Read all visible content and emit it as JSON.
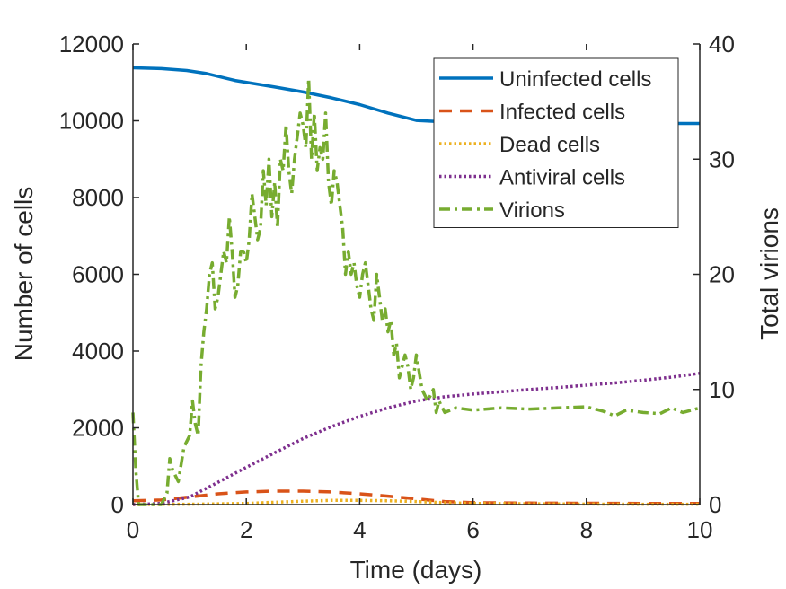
{
  "chart_data": {
    "type": "line",
    "title": "",
    "xlabel": "Time (days)",
    "ylabel_left": "Number of cells",
    "ylabel_right": "Total virions",
    "xlim": [
      0,
      10
    ],
    "ylim_left": [
      0,
      12000
    ],
    "ylim_right": [
      0,
      40
    ],
    "x_ticks": [
      0,
      2,
      4,
      6,
      8,
      10
    ],
    "y_ticks_left": [
      0,
      2000,
      4000,
      6000,
      8000,
      10000,
      12000
    ],
    "y_ticks_right": [
      0,
      10,
      20,
      30,
      40
    ],
    "grid": false,
    "legend_position": "top-right",
    "series": [
      {
        "name": "Uninfected cells",
        "axis": "left",
        "color": "#0072BD",
        "style": "solid",
        "x": [
          0,
          0.5,
          0.95,
          1.3,
          1.8,
          2.5,
          3.0,
          3.5,
          4.0,
          4.5,
          5.0,
          5.5,
          6.0,
          7.0,
          8.0,
          9.0,
          9.9,
          10.0
        ],
        "y": [
          11380,
          11360,
          11310,
          11230,
          11050,
          10880,
          10750,
          10600,
          10420,
          10200,
          10010,
          9970,
          9950,
          9940,
          9935,
          9932,
          9930,
          9930
        ]
      },
      {
        "name": "Infected cells",
        "axis": "left",
        "color": "#D95319",
        "style": "dashed",
        "x": [
          0,
          0.5,
          1.0,
          1.5,
          2.0,
          2.5,
          3.0,
          3.5,
          4.0,
          4.5,
          5.0,
          5.5,
          6.0,
          7.0,
          8.0,
          9.0,
          10.0
        ],
        "y": [
          100,
          120,
          200,
          280,
          330,
          350,
          350,
          330,
          280,
          220,
          150,
          80,
          50,
          40,
          35,
          30,
          30
        ]
      },
      {
        "name": "Dead cells",
        "axis": "left",
        "color": "#EDB120",
        "style": "dotted",
        "x": [
          0,
          1.0,
          2.0,
          2.5,
          3.0,
          3.5,
          4.0,
          4.5,
          5.0,
          5.5,
          6.0,
          7.0,
          8.0,
          9.0,
          10.0
        ],
        "y": [
          0,
          10,
          30,
          60,
          90,
          110,
          110,
          100,
          80,
          50,
          30,
          20,
          15,
          10,
          10
        ]
      },
      {
        "name": "Antiviral cells",
        "axis": "left",
        "color": "#7E2F8E",
        "style": "dotted",
        "x": [
          0,
          0.5,
          1.0,
          1.5,
          2.0,
          2.5,
          3.0,
          3.5,
          4.0,
          4.5,
          5.0,
          5.5,
          6.0,
          6.5,
          7.0,
          7.5,
          8.0,
          8.5,
          9.0,
          9.5,
          10.0
        ],
        "y": [
          0,
          30,
          200,
          580,
          970,
          1350,
          1720,
          2030,
          2300,
          2520,
          2700,
          2810,
          2880,
          2940,
          3000,
          3050,
          3110,
          3170,
          3240,
          3320,
          3420
        ]
      },
      {
        "name": "Virions",
        "axis": "right",
        "color": "#77AC30",
        "style": "dashdot",
        "x": [
          0,
          0.05,
          0.1,
          0.3,
          0.5,
          0.6,
          0.65,
          0.7,
          0.8,
          0.9,
          1.0,
          1.05,
          1.1,
          1.15,
          1.2,
          1.25,
          1.3,
          1.35,
          1.4,
          1.45,
          1.5,
          1.55,
          1.6,
          1.65,
          1.7,
          1.75,
          1.8,
          1.85,
          1.9,
          1.95,
          2.0,
          2.05,
          2.1,
          2.15,
          2.2,
          2.25,
          2.3,
          2.35,
          2.4,
          2.45,
          2.5,
          2.55,
          2.6,
          2.65,
          2.7,
          2.75,
          2.8,
          2.85,
          2.9,
          2.95,
          3.0,
          3.05,
          3.1,
          3.15,
          3.2,
          3.25,
          3.3,
          3.35,
          3.4,
          3.45,
          3.5,
          3.55,
          3.6,
          3.65,
          3.7,
          3.75,
          3.8,
          3.85,
          3.9,
          3.95,
          4.0,
          4.05,
          4.1,
          4.15,
          4.2,
          4.25,
          4.3,
          4.35,
          4.4,
          4.45,
          4.5,
          4.55,
          4.6,
          4.65,
          4.7,
          4.75,
          4.8,
          4.85,
          4.9,
          4.95,
          5.0,
          5.1,
          5.2,
          5.3,
          5.35,
          5.4,
          5.5,
          5.7,
          6.0,
          6.5,
          7.0,
          7.5,
          8.0,
          8.3,
          8.5,
          8.7,
          9.0,
          9.3,
          9.5,
          9.7,
          10.0
        ],
        "y": [
          8,
          3,
          0,
          0,
          0,
          1,
          4,
          3,
          2,
          5,
          6,
          9,
          7,
          6,
          12,
          15,
          17,
          20,
          21,
          17,
          18,
          20,
          22,
          21,
          25,
          22,
          18,
          19,
          22,
          22,
          21,
          23,
          27,
          25,
          23,
          24,
          29,
          26,
          30,
          25,
          28,
          24,
          30,
          29,
          33,
          29,
          27,
          30,
          32,
          34,
          33,
          31,
          37,
          30,
          34,
          29,
          31,
          30,
          34,
          28,
          26,
          29,
          28,
          26,
          24,
          20,
          22,
          20,
          21,
          19,
          18,
          20,
          21,
          19,
          17,
          16,
          20,
          18,
          16,
          17,
          15,
          16,
          13,
          14,
          11,
          12,
          13,
          12,
          10,
          11,
          13,
          10,
          9,
          10,
          8,
          9,
          8,
          8.4,
          8.2,
          8.4,
          8.3,
          8.4,
          8.5,
          8.1,
          7.7,
          8.2,
          8.0,
          7.9,
          8.4,
          8.0,
          8.4
        ]
      }
    ]
  }
}
